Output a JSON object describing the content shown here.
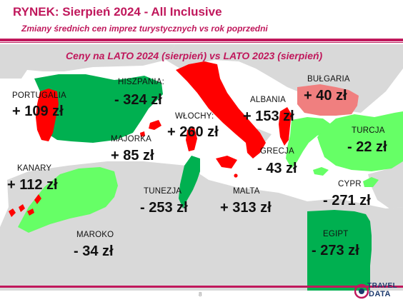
{
  "header": {
    "title": "RYNEK: Sierpień 2024 - All Inclusive",
    "subtitle": "Zmiany średnich cen imprez turystycznych vs rok poprzedni"
  },
  "map": {
    "title": "Ceny na LATO 2024 (sierpień) vs  LATO 2023 (sierpień)",
    "colors": {
      "sea": "#ffffff",
      "land": "#d9d9d9",
      "increase_strong": "#ff0000",
      "increase_mild": "#f07f7f",
      "decrease_strong": "#00b050",
      "decrease_mild": "#66ff66"
    },
    "countries": [
      {
        "name": "PORTUGALIA",
        "value": "+ 109 zł",
        "change": 109,
        "fill": "increase_strong"
      },
      {
        "name": "HISZPANIA:",
        "value": "- 324 zł",
        "change": -324,
        "fill": "decrease_strong"
      },
      {
        "name": "WŁOCHY:",
        "value": "+ 260 zł",
        "change": 260,
        "fill": "increase_strong"
      },
      {
        "name": "ALBANIA",
        "value": "+ 153 zł",
        "change": 153,
        "fill": "increase_strong"
      },
      {
        "name": "BUŁGARIA",
        "value": "+ 40 zł",
        "change": 40,
        "fill": "increase_mild"
      },
      {
        "name": "MAJORKA",
        "value": "+ 85 zł",
        "change": 85,
        "fill": "increase_strong"
      },
      {
        "name": "GRECJA",
        "value": "- 43 zł",
        "change": -43,
        "fill": "decrease_mild"
      },
      {
        "name": "TURCJA",
        "value": "- 22 zł",
        "change": -22,
        "fill": "decrease_mild"
      },
      {
        "name": "KANARY",
        "value": "+ 112 zł",
        "change": 112,
        "fill": "increase_strong"
      },
      {
        "name": "TUNEZJA",
        "value": "- 253 zł",
        "change": -253,
        "fill": "decrease_strong"
      },
      {
        "name": "MALTA",
        "value": "+ 313 zł",
        "change": 313,
        "fill": "increase_strong"
      },
      {
        "name": "CYPR",
        "value": "- 271 zł",
        "change": -271,
        "fill": "decrease_strong"
      },
      {
        "name": "MAROKO",
        "value": "- 34 zł",
        "change": -34,
        "fill": "decrease_mild"
      },
      {
        "name": "EGIPT",
        "value": "- 273 zł",
        "change": -273,
        "fill": "decrease_strong"
      }
    ]
  },
  "footer": {
    "page_number": "8",
    "logo_line1": "TRAVEL",
    "logo_line2": "DATA"
  }
}
